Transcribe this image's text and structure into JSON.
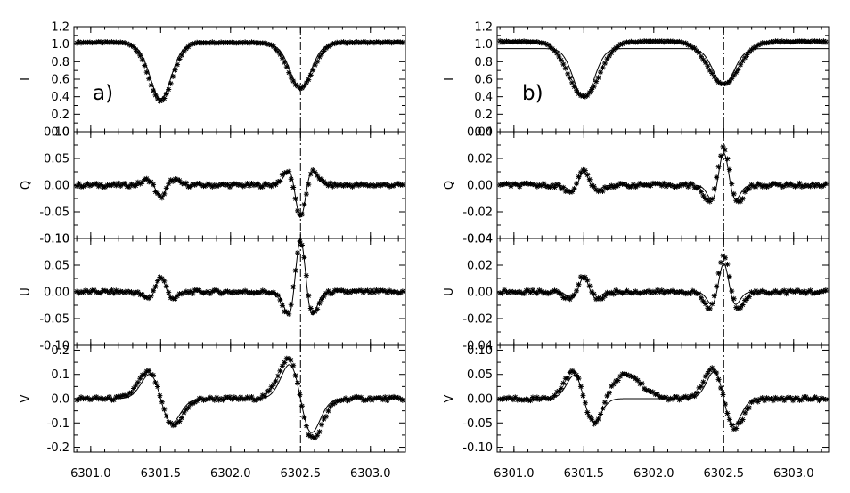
{
  "chart_data": [
    {
      "type": "line",
      "panel_label": "a)",
      "x_ticks": [
        "6301.0",
        "6301.5",
        "6302.0",
        "6302.5",
        "6303.0"
      ],
      "xlim": [
        6300.88,
        6303.25
      ],
      "reference_line_x": 6302.5,
      "line_centers": [
        6301.5,
        6302.5
      ],
      "subplots": [
        {
          "ylabel": "I",
          "ylim": [
            0.0,
            1.2
          ],
          "y_ticks": [
            "0.0",
            "0.2",
            "0.4",
            "0.6",
            "0.8",
            "1.0",
            "1.2"
          ],
          "series": [
            {
              "style": "solid",
              "kind": "absorption",
              "continuum": 1.0,
              "depths": [
                0.62,
                0.5
              ],
              "widths": [
                0.075,
                0.075
              ]
            },
            {
              "style": "asterisk",
              "kind": "absorption",
              "continuum": 1.02,
              "depths": [
                0.67,
                0.52
              ],
              "widths": [
                0.085,
                0.09
              ]
            }
          ]
        },
        {
          "ylabel": "Q",
          "ylim": [
            -0.1,
            0.1
          ],
          "y_ticks": [
            "-0.10",
            "-0.05",
            "0.00",
            "0.05",
            "0.10"
          ],
          "series": [
            {
              "style": "solid",
              "kind": "linear",
              "amplitudes": [
                0.04,
                0.1
              ],
              "widths": [
                0.05,
                0.05
              ]
            },
            {
              "style": "asterisk",
              "kind": "linear",
              "amplitudes": [
                0.038,
                0.095
              ],
              "widths": [
                0.055,
                0.055
              ]
            }
          ]
        },
        {
          "ylabel": "U",
          "ylim": [
            -0.1,
            0.1
          ],
          "y_ticks": [
            "-0.10",
            "-0.05",
            "0.00",
            "0.05",
            "0.10"
          ],
          "series": [
            {
              "style": "solid",
              "kind": "linear",
              "amplitudes": [
                -0.045,
                -0.16
              ],
              "widths": [
                0.05,
                0.05
              ]
            },
            {
              "style": "asterisk",
              "kind": "linear",
              "amplitudes": [
                -0.045,
                -0.155
              ],
              "widths": [
                0.055,
                0.055
              ]
            }
          ]
        },
        {
          "ylabel": "V",
          "ylim": [
            -0.22,
            0.22
          ],
          "y_ticks": [
            "-0.2",
            "-0.1",
            "0.0",
            "0.1",
            "0.2"
          ],
          "series": [
            {
              "style": "solid",
              "kind": "circular",
              "amplitudes": [
                0.1,
                0.14
              ],
              "widths": [
                0.08,
                0.08
              ]
            },
            {
              "style": "asterisk",
              "kind": "circular",
              "amplitudes": [
                0.11,
                0.165
              ],
              "widths": [
                0.09,
                0.09
              ]
            }
          ]
        }
      ]
    },
    {
      "type": "line",
      "panel_label": "b)",
      "x_ticks": [
        "6301.0",
        "6301.5",
        "6302.0",
        "6302.5",
        "6303.0"
      ],
      "xlim": [
        6300.88,
        6303.25
      ],
      "reference_line_x": 6302.5,
      "line_centers": [
        6301.5,
        6302.5
      ],
      "subplots": [
        {
          "ylabel": "I",
          "ylim": [
            0.0,
            1.2
          ],
          "y_ticks": [
            "0.0",
            "0.2",
            "0.4",
            "0.6",
            "0.8",
            "1.0",
            "1.2"
          ],
          "series": [
            {
              "style": "solid",
              "kind": "absorption",
              "continuum": 0.95,
              "depths": [
                0.56,
                0.41
              ],
              "widths": [
                0.075,
                0.075
              ]
            },
            {
              "style": "asterisk",
              "kind": "absorption",
              "continuum": 1.03,
              "depths": [
                0.63,
                0.49
              ],
              "widths": [
                0.11,
                0.11
              ]
            }
          ]
        },
        {
          "ylabel": "Q",
          "ylim": [
            -0.04,
            0.04
          ],
          "y_ticks": [
            "-0.04",
            "-0.02",
            "0.00",
            "0.02",
            "0.04"
          ],
          "series": [
            {
              "style": "solid",
              "kind": "linear",
              "amplitudes": [
                -0.016,
                -0.04
              ],
              "widths": [
                0.05,
                0.05
              ]
            },
            {
              "style": "asterisk",
              "kind": "linear",
              "amplitudes": [
                -0.018,
                -0.046
              ],
              "widths": [
                0.06,
                0.06
              ]
            }
          ]
        },
        {
          "ylabel": "U",
          "ylim": [
            -0.04,
            0.04
          ],
          "y_ticks": [
            "-0.04",
            "-0.02",
            "0.00",
            "0.02",
            "0.04"
          ],
          "series": [
            {
              "style": "solid",
              "kind": "linear",
              "amplitudes": [
                -0.018,
                -0.035
              ],
              "widths": [
                0.05,
                0.05
              ]
            },
            {
              "style": "asterisk",
              "kind": "linear",
              "amplitudes": [
                -0.02,
                -0.045
              ],
              "widths": [
                0.06,
                0.06
              ]
            }
          ]
        },
        {
          "ylabel": "V",
          "ylim": [
            -0.11,
            0.11
          ],
          "y_ticks": [
            "-0.10",
            "-0.05",
            "0.00",
            "0.05",
            "0.10"
          ],
          "series": [
            {
              "style": "solid",
              "kind": "circular",
              "amplitudes": [
                0.048,
                0.055
              ],
              "widths": [
                0.07,
                0.07
              ]
            },
            {
              "style": "asterisk",
              "kind": "circular_extra",
              "amplitudes": [
                0.055,
                0.06
              ],
              "widths": [
                0.08,
                0.08
              ],
              "extra_center": 6301.8,
              "extra_amp": 0.05,
              "extra_width": 0.11
            }
          ]
        }
      ]
    }
  ]
}
